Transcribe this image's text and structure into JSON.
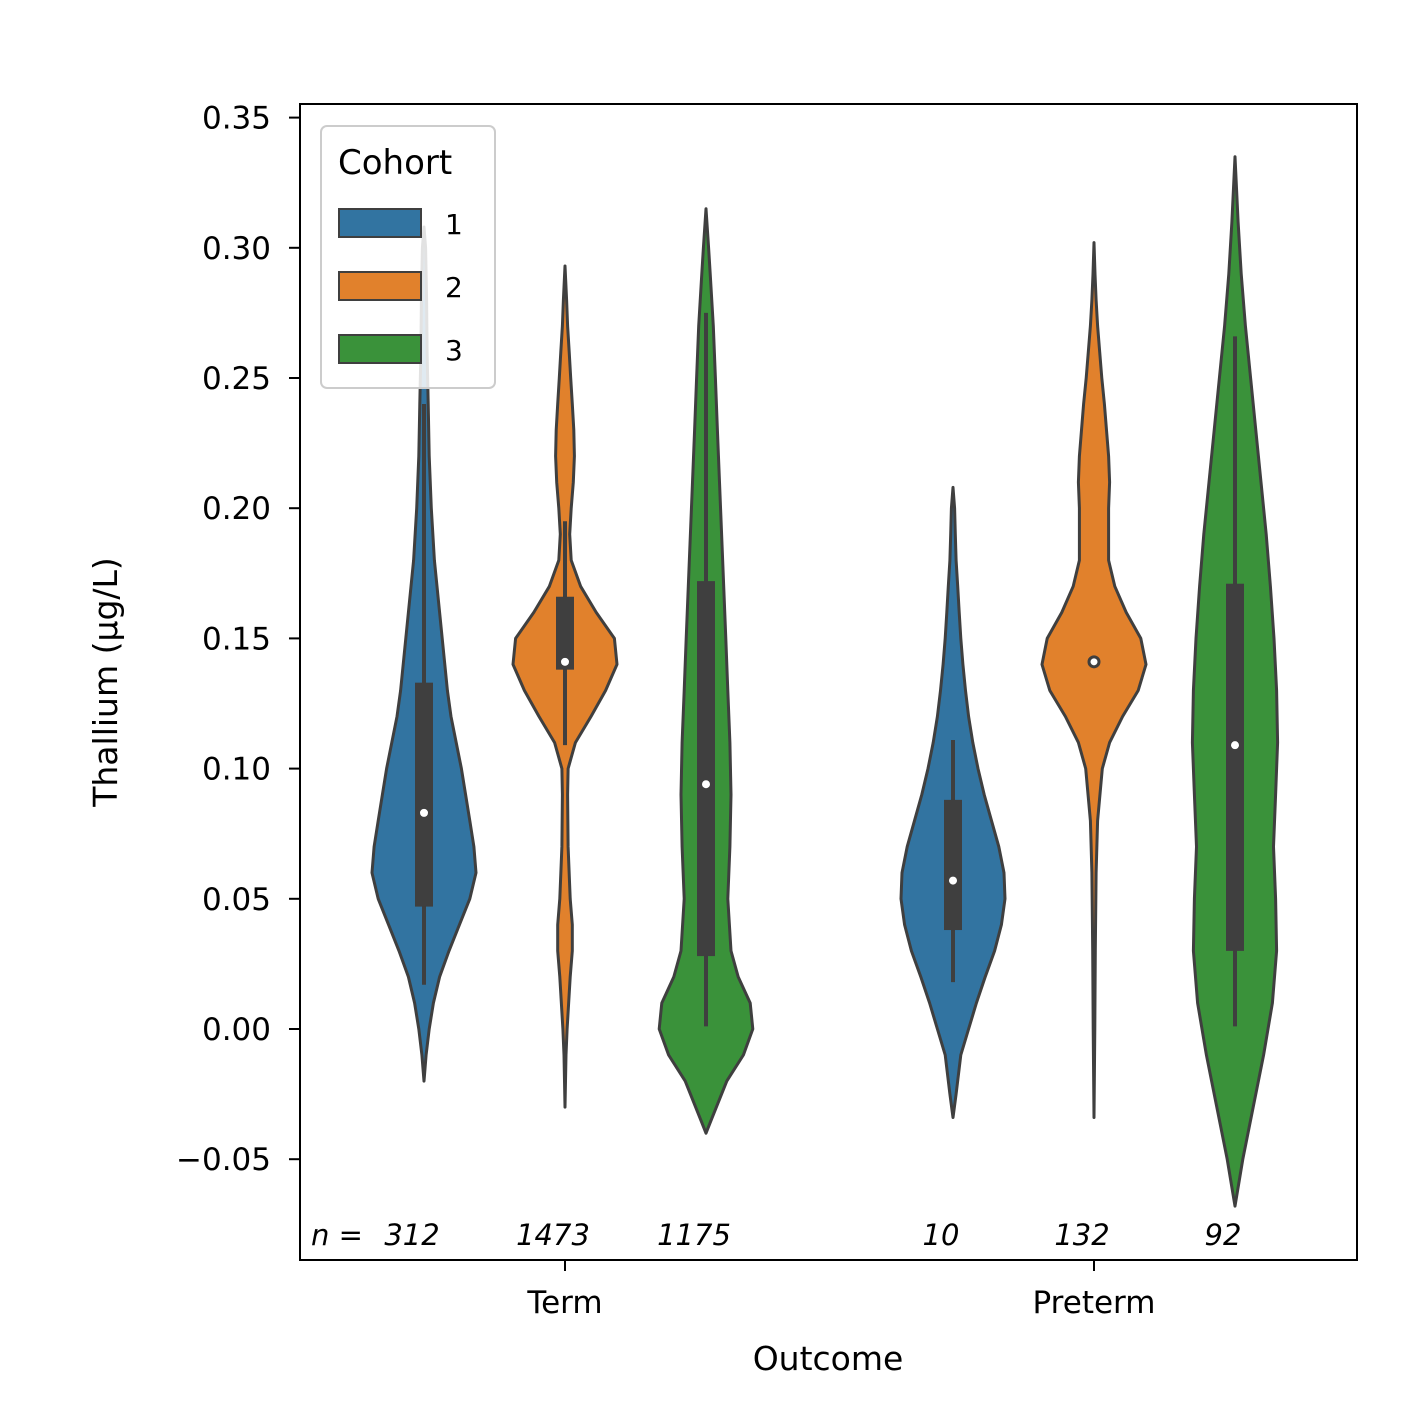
{
  "chart_data": {
    "type": "violin",
    "title": "",
    "xlabel": "Outcome",
    "ylabel": "Thallium (µg/L)",
    "ylim": [
      -0.075,
      0.357
    ],
    "yticks": [
      -0.05,
      0.0,
      0.05,
      0.1,
      0.15,
      0.2,
      0.25,
      0.3,
      0.35
    ],
    "ytick_labels": [
      "−0.05",
      "0.00",
      "0.05",
      "0.10",
      "0.15",
      "0.20",
      "0.25",
      "0.30",
      "0.35"
    ],
    "categories": [
      "Term",
      "Preterm"
    ],
    "legend": {
      "title": "Cohort",
      "position": "top-left"
    },
    "n_prefix": "n = ",
    "series": [
      {
        "name": "1",
        "color": "#3274a1",
        "groups": [
          {
            "category": "Term",
            "n": "312",
            "median": 0.083,
            "q1": 0.047,
            "q3": 0.133,
            "whisker_low": 0.017,
            "whisker_high": 0.24,
            "density": [
              [
                -0.02,
                0.0
              ],
              [
                -0.01,
                0.04
              ],
              [
                0.0,
                0.1
              ],
              [
                0.01,
                0.18
              ],
              [
                0.02,
                0.3
              ],
              [
                0.03,
                0.48
              ],
              [
                0.04,
                0.68
              ],
              [
                0.05,
                0.88
              ],
              [
                0.06,
                1.0
              ],
              [
                0.07,
                0.96
              ],
              [
                0.08,
                0.88
              ],
              [
                0.09,
                0.8
              ],
              [
                0.1,
                0.72
              ],
              [
                0.11,
                0.62
              ],
              [
                0.12,
                0.52
              ],
              [
                0.13,
                0.45
              ],
              [
                0.14,
                0.4
              ],
              [
                0.15,
                0.35
              ],
              [
                0.16,
                0.3
              ],
              [
                0.18,
                0.2
              ],
              [
                0.2,
                0.14
              ],
              [
                0.22,
                0.1
              ],
              [
                0.24,
                0.08
              ],
              [
                0.26,
                0.06
              ],
              [
                0.28,
                0.05
              ],
              [
                0.3,
                0.03
              ],
              [
                0.308,
                0.0
              ]
            ]
          },
          {
            "category": "Preterm",
            "n": "10",
            "median": 0.057,
            "q1": 0.038,
            "q3": 0.088,
            "whisker_low": 0.018,
            "whisker_high": 0.111,
            "density": [
              [
                -0.034,
                0.0
              ],
              [
                -0.025,
                0.06
              ],
              [
                -0.01,
                0.15
              ],
              [
                0.0,
                0.3
              ],
              [
                0.01,
                0.45
              ],
              [
                0.02,
                0.62
              ],
              [
                0.03,
                0.8
              ],
              [
                0.04,
                0.93
              ],
              [
                0.05,
                1.0
              ],
              [
                0.06,
                0.98
              ],
              [
                0.07,
                0.88
              ],
              [
                0.08,
                0.74
              ],
              [
                0.09,
                0.6
              ],
              [
                0.1,
                0.48
              ],
              [
                0.11,
                0.38
              ],
              [
                0.12,
                0.3
              ],
              [
                0.13,
                0.24
              ],
              [
                0.14,
                0.19
              ],
              [
                0.15,
                0.15
              ],
              [
                0.16,
                0.12
              ],
              [
                0.17,
                0.09
              ],
              [
                0.18,
                0.06
              ],
              [
                0.19,
                0.045
              ],
              [
                0.2,
                0.03
              ],
              [
                0.208,
                0.0
              ]
            ]
          }
        ]
      },
      {
        "name": "2",
        "color": "#e1812c",
        "groups": [
          {
            "category": "Term",
            "n": "1473",
            "median": 0.141,
            "q1": 0.138,
            "q3": 0.166,
            "whisker_low": 0.109,
            "whisker_high": 0.195,
            "density": [
              [
                -0.03,
                0.0
              ],
              [
                -0.01,
                0.02
              ],
              [
                0.0,
                0.04
              ],
              [
                0.02,
                0.1
              ],
              [
                0.03,
                0.14
              ],
              [
                0.04,
                0.14
              ],
              [
                0.05,
                0.1
              ],
              [
                0.07,
                0.06
              ],
              [
                0.09,
                0.05
              ],
              [
                0.1,
                0.06
              ],
              [
                0.11,
                0.2
              ],
              [
                0.12,
                0.5
              ],
              [
                0.13,
                0.78
              ],
              [
                0.14,
                1.0
              ],
              [
                0.15,
                0.95
              ],
              [
                0.16,
                0.6
              ],
              [
                0.17,
                0.3
              ],
              [
                0.18,
                0.12
              ],
              [
                0.19,
                0.09
              ],
              [
                0.2,
                0.12
              ],
              [
                0.21,
                0.16
              ],
              [
                0.22,
                0.18
              ],
              [
                0.23,
                0.17
              ],
              [
                0.24,
                0.14
              ],
              [
                0.25,
                0.11
              ],
              [
                0.26,
                0.08
              ],
              [
                0.27,
                0.05
              ],
              [
                0.28,
                0.03
              ],
              [
                0.293,
                0.0
              ]
            ]
          },
          {
            "category": "Preterm",
            "n": "132",
            "median": 0.141,
            "q1": 0.141,
            "q3": 0.141,
            "whisker_low": 0.141,
            "whisker_high": 0.141,
            "density": [
              [
                -0.034,
                0.0
              ],
              [
                0.0,
                0.015
              ],
              [
                0.03,
                0.025
              ],
              [
                0.06,
                0.04
              ],
              [
                0.08,
                0.07
              ],
              [
                0.1,
                0.16
              ],
              [
                0.11,
                0.3
              ],
              [
                0.12,
                0.55
              ],
              [
                0.13,
                0.85
              ],
              [
                0.14,
                1.0
              ],
              [
                0.15,
                0.9
              ],
              [
                0.16,
                0.62
              ],
              [
                0.17,
                0.4
              ],
              [
                0.18,
                0.28
              ],
              [
                0.19,
                0.28
              ],
              [
                0.2,
                0.28
              ],
              [
                0.21,
                0.3
              ],
              [
                0.22,
                0.28
              ],
              [
                0.23,
                0.24
              ],
              [
                0.24,
                0.2
              ],
              [
                0.25,
                0.15
              ],
              [
                0.26,
                0.11
              ],
              [
                0.27,
                0.07
              ],
              [
                0.28,
                0.04
              ],
              [
                0.29,
                0.02
              ],
              [
                0.302,
                0.0
              ]
            ]
          }
        ]
      },
      {
        "name": "3",
        "color": "#3a923a",
        "groups": [
          {
            "category": "Term",
            "n": "1175",
            "median": 0.094,
            "q1": 0.028,
            "q3": 0.172,
            "whisker_low": 0.001,
            "whisker_high": 0.275,
            "density": [
              [
                -0.04,
                0.0
              ],
              [
                -0.035,
                0.1
              ],
              [
                -0.02,
                0.4
              ],
              [
                -0.01,
                0.72
              ],
              [
                0.0,
                0.9
              ],
              [
                0.01,
                0.85
              ],
              [
                0.02,
                0.62
              ],
              [
                0.03,
                0.48
              ],
              [
                0.05,
                0.42
              ],
              [
                0.07,
                0.46
              ],
              [
                0.09,
                0.48
              ],
              [
                0.11,
                0.46
              ],
              [
                0.13,
                0.42
              ],
              [
                0.15,
                0.38
              ],
              [
                0.17,
                0.34
              ],
              [
                0.19,
                0.3
              ],
              [
                0.21,
                0.26
              ],
              [
                0.23,
                0.22
              ],
              [
                0.25,
                0.18
              ],
              [
                0.27,
                0.14
              ],
              [
                0.29,
                0.08
              ],
              [
                0.3,
                0.05
              ],
              [
                0.315,
                0.0
              ]
            ]
          },
          {
            "category": "Preterm",
            "n": "92",
            "median": 0.109,
            "q1": 0.03,
            "q3": 0.171,
            "whisker_low": 0.001,
            "whisker_high": 0.266,
            "density": [
              [
                -0.068,
                0.0
              ],
              [
                -0.05,
                0.15
              ],
              [
                -0.03,
                0.35
              ],
              [
                -0.01,
                0.55
              ],
              [
                0.01,
                0.72
              ],
              [
                0.03,
                0.8
              ],
              [
                0.05,
                0.78
              ],
              [
                0.07,
                0.74
              ],
              [
                0.09,
                0.78
              ],
              [
                0.11,
                0.82
              ],
              [
                0.13,
                0.8
              ],
              [
                0.15,
                0.75
              ],
              [
                0.17,
                0.68
              ],
              [
                0.19,
                0.6
              ],
              [
                0.21,
                0.5
              ],
              [
                0.23,
                0.4
              ],
              [
                0.25,
                0.3
              ],
              [
                0.27,
                0.2
              ],
              [
                0.29,
                0.12
              ],
              [
                0.31,
                0.06
              ],
              [
                0.335,
                0.0
              ]
            ]
          }
        ]
      }
    ]
  }
}
